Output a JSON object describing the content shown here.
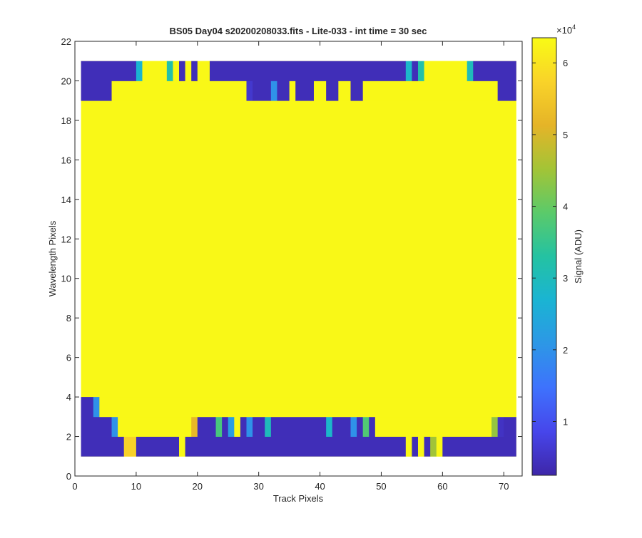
{
  "chart_data": {
    "type": "heatmap",
    "title": "BS05 Day04  s20200208033.fits - Lite-033 - int time = 30 sec",
    "xlabel": "Track Pixels",
    "ylabel": "Wavelength Pixels",
    "xlim": [
      0,
      73
    ],
    "ylim": [
      0,
      22
    ],
    "xticks": [
      0,
      10,
      20,
      30,
      40,
      50,
      60,
      70
    ],
    "yticks": [
      0,
      2,
      4,
      6,
      8,
      10,
      12,
      14,
      16,
      18,
      20,
      22
    ],
    "x_range": [
      1,
      72
    ],
    "y_range": [
      1,
      21
    ],
    "colormap": "parula",
    "colorbar": {
      "label": "Signal (ADU)",
      "exponent_label": "×10",
      "exponent": "4",
      "range": [
        2500,
        63500
      ],
      "ticks": [
        1,
        2,
        3,
        4,
        5,
        6
      ],
      "tick_scale": 10000
    },
    "background_value": 63000,
    "rows": [
      {
        "y": [
          1,
          2
        ],
        "segments": [
          {
            "x": [
              1,
              8
            ],
            "value": 4000
          },
          {
            "x": [
              8,
              10
            ],
            "value": 57000
          },
          {
            "x": [
              10,
              17
            ],
            "value": 4000
          },
          {
            "x": [
              17,
              18
            ],
            "value": 63000
          },
          {
            "x": [
              18,
              54
            ],
            "value": 4000
          },
          {
            "x": [
              54,
              55
            ],
            "value": 63000
          },
          {
            "x": [
              55,
              56
            ],
            "value": 4000
          },
          {
            "x": [
              56,
              57
            ],
            "value": 63000
          },
          {
            "x": [
              57,
              58
            ],
            "value": 4000
          },
          {
            "x": [
              58,
              59
            ],
            "value": 45000
          },
          {
            "x": [
              59,
              60
            ],
            "value": 63000
          },
          {
            "x": [
              60,
              72
            ],
            "value": 4000
          }
        ]
      },
      {
        "y": [
          2,
          3
        ],
        "segments": [
          {
            "x": [
              1,
              6
            ],
            "value": 4000
          },
          {
            "x": [
              6,
              7
            ],
            "value": 20000
          },
          {
            "x": [
              7,
              19
            ],
            "value": 63000
          },
          {
            "x": [
              19,
              20
            ],
            "value": 52000
          },
          {
            "x": [
              20,
              23
            ],
            "value": 4000
          },
          {
            "x": [
              23,
              24
            ],
            "value": 37000
          },
          {
            "x": [
              24,
              25
            ],
            "value": 4000
          },
          {
            "x": [
              25,
              26
            ],
            "value": 22000
          },
          {
            "x": [
              26,
              27
            ],
            "value": 63000
          },
          {
            "x": [
              27,
              28
            ],
            "value": 4000
          },
          {
            "x": [
              28,
              29
            ],
            "value": 20000
          },
          {
            "x": [
              29,
              31
            ],
            "value": 4000
          },
          {
            "x": [
              31,
              32
            ],
            "value": 30000
          },
          {
            "x": [
              32,
              41
            ],
            "value": 4000
          },
          {
            "x": [
              41,
              42
            ],
            "value": 28000
          },
          {
            "x": [
              42,
              45
            ],
            "value": 4000
          },
          {
            "x": [
              45,
              46
            ],
            "value": 20000
          },
          {
            "x": [
              46,
              47
            ],
            "value": 4000
          },
          {
            "x": [
              47,
              48
            ],
            "value": 38000
          },
          {
            "x": [
              48,
              49
            ],
            "value": 4000
          },
          {
            "x": [
              49,
              68
            ],
            "value": 63000
          },
          {
            "x": [
              68,
              69
            ],
            "value": 44000
          },
          {
            "x": [
              69,
              70
            ],
            "value": 5000
          },
          {
            "x": [
              70,
              72
            ],
            "value": 4000
          }
        ]
      },
      {
        "y": [
          3,
          4
        ],
        "segments": [
          {
            "x": [
              1,
              3
            ],
            "value": 4000
          },
          {
            "x": [
              3,
              4
            ],
            "value": 20000
          },
          {
            "x": [
              4,
              72
            ],
            "value": 63000
          }
        ]
      },
      {
        "y": [
          19,
          20
        ],
        "segments": [
          {
            "x": [
              1,
              6
            ],
            "value": 4000
          },
          {
            "x": [
              6,
              28
            ],
            "value": 63000
          },
          {
            "x": [
              28,
              29
            ],
            "value": 6000
          },
          {
            "x": [
              29,
              32
            ],
            "value": 4000
          },
          {
            "x": [
              32,
              33
            ],
            "value": 20000
          },
          {
            "x": [
              33,
              35
            ],
            "value": 4000
          },
          {
            "x": [
              35,
              36
            ],
            "value": 63000
          },
          {
            "x": [
              36,
              37
            ],
            "value": 4000
          },
          {
            "x": [
              37,
              39
            ],
            "value": 4000
          },
          {
            "x": [
              39,
              41
            ],
            "value": 63000
          },
          {
            "x": [
              41,
              43
            ],
            "value": 4000
          },
          {
            "x": [
              43,
              45
            ],
            "value": 63000
          },
          {
            "x": [
              45,
              47
            ],
            "value": 4000
          },
          {
            "x": [
              47,
              69
            ],
            "value": 63000
          },
          {
            "x": [
              69,
              72
            ],
            "value": 4000
          }
        ]
      },
      {
        "y": [
          20,
          21
        ],
        "segments": [
          {
            "x": [
              1,
              10
            ],
            "value": 4000
          },
          {
            "x": [
              10,
              11
            ],
            "value": 27000
          },
          {
            "x": [
              11,
              15
            ],
            "value": 63000
          },
          {
            "x": [
              15,
              16
            ],
            "value": 32000
          },
          {
            "x": [
              16,
              17
            ],
            "value": 63000
          },
          {
            "x": [
              17,
              18
            ],
            "value": 4000
          },
          {
            "x": [
              18,
              19
            ],
            "value": 63000
          },
          {
            "x": [
              19,
              20
            ],
            "value": 4000
          },
          {
            "x": [
              20,
              22
            ],
            "value": 63000
          },
          {
            "x": [
              22,
              54
            ],
            "value": 4000
          },
          {
            "x": [
              54,
              55
            ],
            "value": 28000
          },
          {
            "x": [
              55,
              56
            ],
            "value": 4000
          },
          {
            "x": [
              56,
              57
            ],
            "value": 32000
          },
          {
            "x": [
              57,
              64
            ],
            "value": 63000
          },
          {
            "x": [
              64,
              65
            ],
            "value": 30000
          },
          {
            "x": [
              65,
              72
            ],
            "value": 4000
          }
        ]
      }
    ]
  }
}
